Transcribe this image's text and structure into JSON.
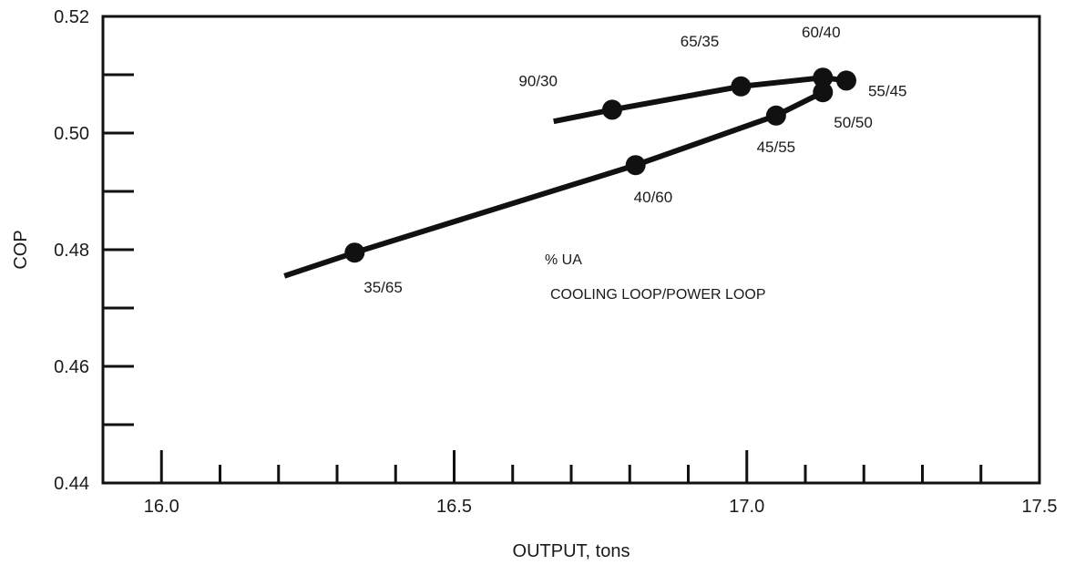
{
  "chart_data": {
    "type": "line",
    "title": "",
    "xlabel": "OUTPUT, tons",
    "ylabel": "COP",
    "xlim": [
      15.9,
      17.5
    ],
    "ylim": [
      0.44,
      0.52
    ],
    "x_major_ticks": [
      16.0,
      16.5,
      17.0,
      17.5
    ],
    "x_major_tick_labels": [
      "16.0",
      "16.5",
      "17.0",
      "17.5"
    ],
    "x_minor_ticks": [
      16.1,
      16.2,
      16.3,
      16.4,
      16.6,
      16.7,
      16.8,
      16.9,
      17.1,
      17.2,
      17.3,
      17.4
    ],
    "y_major_ticks": [
      0.44,
      0.46,
      0.48,
      0.5,
      0.52
    ],
    "y_major_tick_labels": [
      "0.44",
      "0.46",
      "0.48",
      "0.50",
      "0.52"
    ],
    "y_minor_ticks": [
      0.45,
      0.47,
      0.49,
      0.51
    ],
    "grid": false,
    "series": [
      {
        "x": [
          16.67,
          16.77,
          16.99,
          17.13,
          17.17
        ],
        "y": [
          0.502,
          0.504,
          0.508,
          0.5095,
          0.509
        ],
        "markers": [
          {
            "x": 16.77,
            "y": 0.504,
            "label": "90/30"
          },
          {
            "x": 16.99,
            "y": 0.508,
            "label": "65/35"
          },
          {
            "x": 17.13,
            "y": 0.5095,
            "label": "60/40"
          },
          {
            "x": 17.17,
            "y": 0.509,
            "label": "55/45"
          }
        ]
      },
      {
        "x": [
          16.21,
          16.33,
          16.81,
          17.05,
          17.13,
          17.14
        ],
        "y": [
          0.4755,
          0.4795,
          0.4945,
          0.503,
          0.507,
          0.508
        ],
        "markers": [
          {
            "x": 16.33,
            "y": 0.4795,
            "label": "35/65"
          },
          {
            "x": 16.81,
            "y": 0.4945,
            "label": "40/60"
          },
          {
            "x": 17.05,
            "y": 0.503,
            "label": "45/55"
          },
          {
            "x": 17.13,
            "y": 0.507,
            "label": "50/50"
          }
        ]
      }
    ],
    "annotations": [
      "% UA",
      "COOLING LOOP/POWER LOOP"
    ],
    "colors": {
      "ink": "#111111",
      "background": "#ffffff"
    }
  }
}
